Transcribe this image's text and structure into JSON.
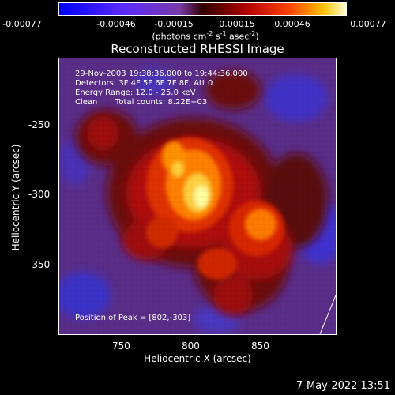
{
  "colorbar": {
    "ticks": [
      "-0.00077",
      "-0.00046",
      "-0.00015",
      "0.00015",
      "0.00046",
      "0.00077"
    ],
    "unit_prefix": "(photons cm",
    "unit_exp1": "-2",
    "unit_mid1": " s",
    "unit_exp2": "-1",
    "unit_mid2": " asec",
    "unit_exp3": "-2",
    "unit_suffix": ")"
  },
  "image": {
    "title": "Reconstructed RHESSI Image",
    "time_range": "29-Nov-2003 19:38:36.000 to 19:44:36.000",
    "detectors": "Detectors: 3F 4F 5F 6F 7F 8F, Att 0",
    "energy_range": "Energy Range: 12.0 - 25.0 keV",
    "algorithm": "Clean",
    "total_counts": "Total counts: 8.22E+03",
    "peak_position": "Position of Peak = [802,-303]",
    "colors": {
      "background_low": "#5a2a8c",
      "mid": "#b01010",
      "high": "#ffff60"
    }
  },
  "axes": {
    "x_label": "Heliocentric X (arcsec)",
    "y_label": "Heliocentric Y (arcsec)",
    "x_ticks": [
      "750",
      "800",
      "850"
    ],
    "y_ticks": [
      "-250",
      "-300",
      "-350"
    ]
  },
  "footer": {
    "timestamp": "7-May-2022 13:51"
  }
}
